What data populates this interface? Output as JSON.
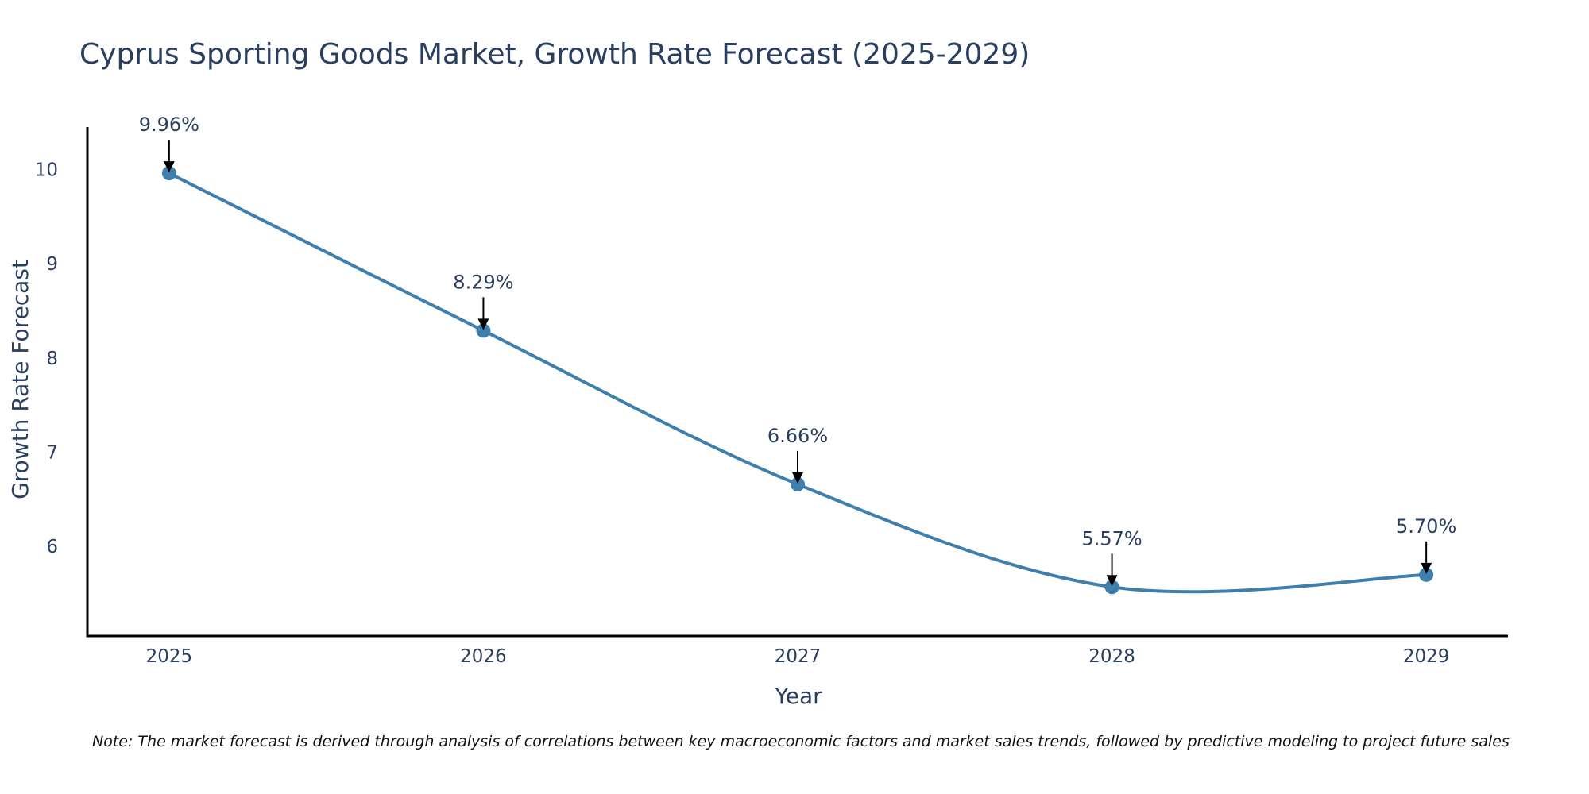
{
  "chart_data": {
    "type": "line",
    "title": "Cyprus Sporting Goods Market, Growth Rate Forecast (2025-2029)",
    "xlabel": "Year",
    "ylabel": "Growth Rate Forecast",
    "x": [
      "2025",
      "2026",
      "2027",
      "2028",
      "2029"
    ],
    "series": [
      {
        "name": "Growth Rate Forecast",
        "values": [
          9.96,
          8.29,
          6.66,
          5.57,
          5.7
        ],
        "labels": [
          "9.96%",
          "8.29%",
          "6.66%",
          "5.57%",
          "5.70%"
        ],
        "line_shape": "spline"
      }
    ],
    "yticks": [
      6,
      7,
      8,
      9,
      10
    ],
    "ylim": [
      5.05,
      10.45
    ],
    "xlim": [
      2024.74,
      2029.26
    ],
    "grid": false,
    "line_color": "#3f7fad",
    "marker_color": "#3f7fad",
    "note": "Note: The market forecast is derived through analysis of correlations between key macroeconomic factors and market sales trends, followed by predictive modeling to project future sales"
  }
}
